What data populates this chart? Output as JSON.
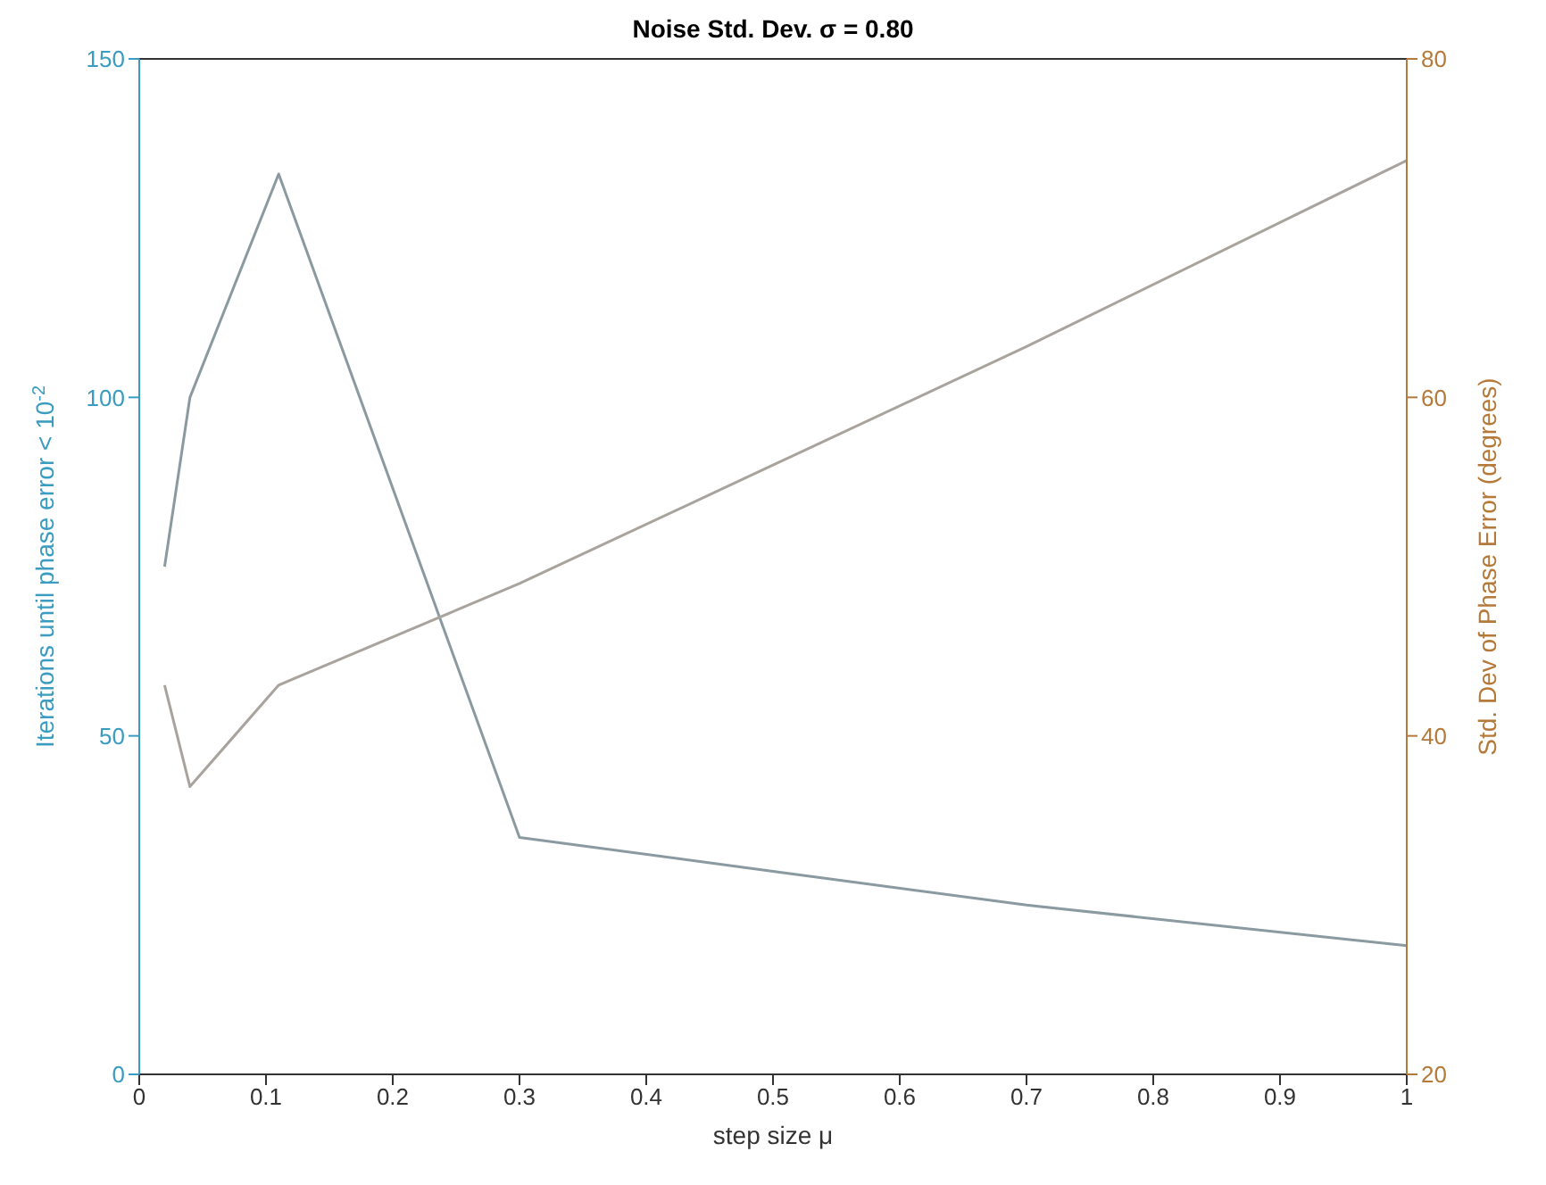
{
  "chart_data": {
    "type": "line",
    "title": "Noise Std. Dev. σ = 0.80",
    "xlabel": "step size μ",
    "ylabel": "Iterations until phase error < 10$^{-2}$",
    "y2label": "Std. Dev of Phase Error (degrees)",
    "xlim": [
      0,
      1
    ],
    "xticks": [
      0,
      0.1,
      0.2,
      0.3,
      0.4,
      0.5,
      0.6,
      0.7,
      0.8,
      0.9,
      1
    ],
    "ylim": [
      0,
      150
    ],
    "yticks": [
      0,
      50,
      100,
      150
    ],
    "y2lim": [
      20,
      80
    ],
    "y2ticks": [
      20,
      40,
      60,
      80
    ],
    "marker": "none",
    "line_style": "solid",
    "series": [
      {
        "color": "#8a9aa0",
        "x": [
          0.02,
          0.04,
          0.11,
          0.3,
          0.5,
          0.7,
          1
        ],
        "values": [
          75,
          100,
          133,
          35,
          30,
          25,
          19
        ]
      },
      {
        "color": "#a8a39c",
        "axis": "y2",
        "x": [
          0.02,
          0.04,
          0.11,
          0.3,
          0.5,
          0.7,
          1
        ],
        "values": [
          43,
          37,
          43,
          49,
          56,
          63,
          74
        ]
      }
    ]
  }
}
